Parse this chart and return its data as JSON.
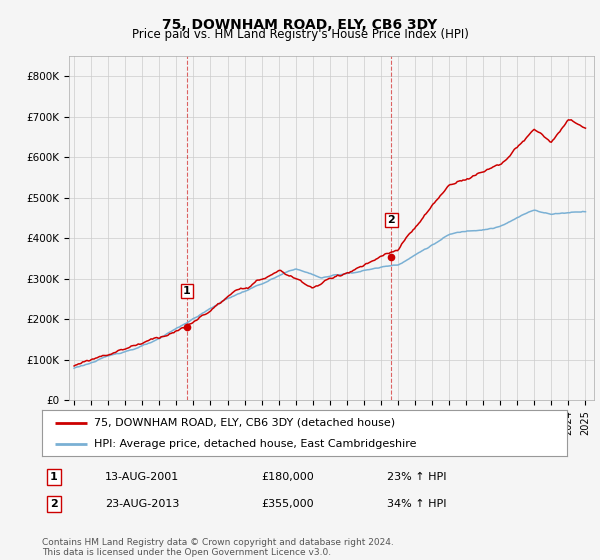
{
  "title": "75, DOWNHAM ROAD, ELY, CB6 3DY",
  "subtitle": "Price paid vs. HM Land Registry's House Price Index (HPI)",
  "house_color": "#cc0000",
  "hpi_color": "#7ab0d4",
  "bg_color": "#f5f5f5",
  "grid_color": "#cccccc",
  "yticks": [
    0,
    100000,
    200000,
    300000,
    400000,
    500000,
    600000,
    700000,
    800000
  ],
  "ytick_labels": [
    "£0",
    "£100K",
    "£200K",
    "£300K",
    "£400K",
    "£500K",
    "£600K",
    "£700K",
    "£800K"
  ],
  "legend_house": "75, DOWNHAM ROAD, ELY, CB6 3DY (detached house)",
  "legend_hpi": "HPI: Average price, detached house, East Cambridgeshire",
  "table_row1": [
    "1",
    "13-AUG-2001",
    "£180,000",
    "23% ↑ HPI"
  ],
  "table_row2": [
    "2",
    "23-AUG-2013",
    "£355,000",
    "34% ↑ HPI"
  ],
  "footer": "Contains HM Land Registry data © Crown copyright and database right 2024.\nThis data is licensed under the Open Government Licence v3.0.",
  "sale1_year": 2001.62,
  "sale1_price": 180000,
  "sale2_year": 2013.62,
  "sale2_price": 355000,
  "title_fontsize": 10,
  "subtitle_fontsize": 8.5,
  "tick_fontsize": 7.5,
  "legend_fontsize": 8,
  "footer_fontsize": 6.5,
  "annot_fontsize": 8
}
